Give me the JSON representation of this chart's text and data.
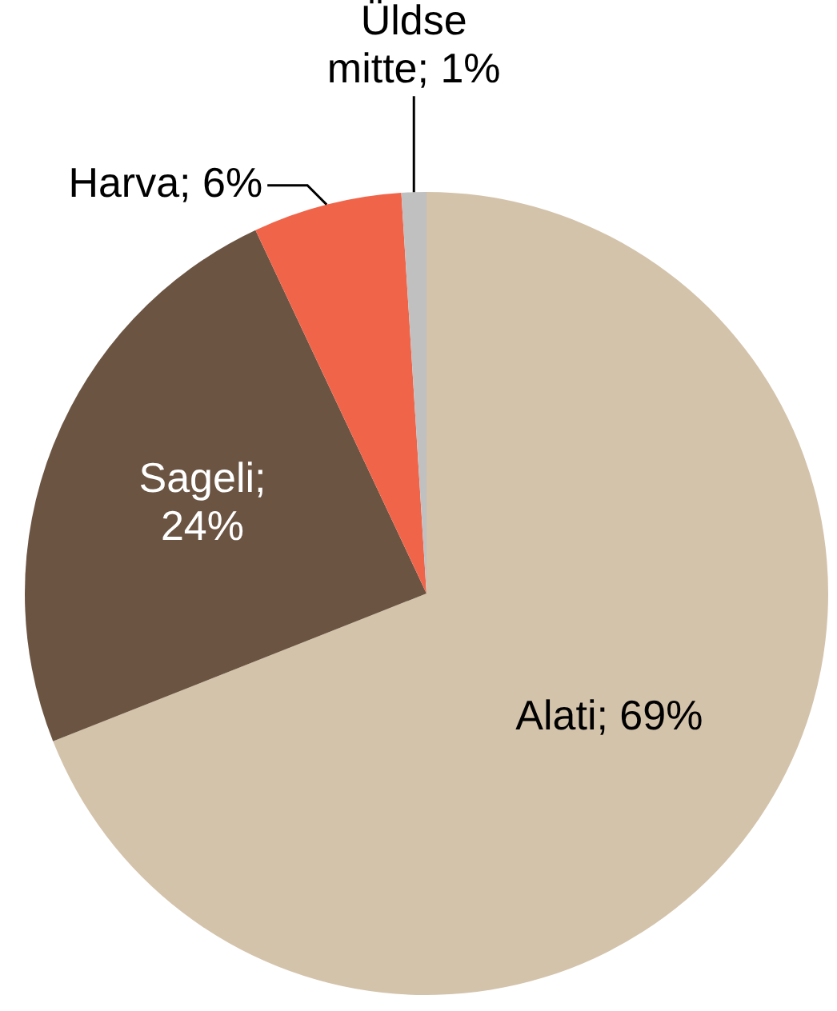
{
  "chart_data": {
    "type": "pie",
    "categories": [
      "Alati",
      "Sageli",
      "Harva",
      "Üldse mitte"
    ],
    "values": [
      69,
      24,
      6,
      1
    ],
    "colors": [
      "#d4c3ab",
      "#6b5442",
      "#f0654a",
      "#c0c0c0"
    ],
    "value_labels": [
      "; 69%",
      "; 24%",
      "; 6%",
      "; 1%"
    ],
    "legend": false
  }
}
